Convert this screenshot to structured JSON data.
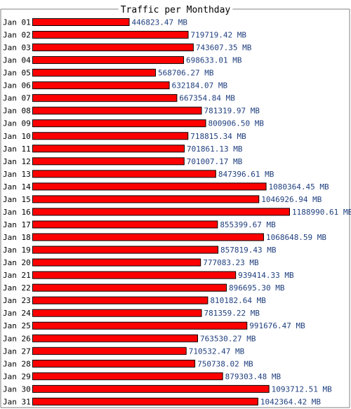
{
  "chart_data": {
    "type": "bar",
    "orientation": "horizontal",
    "title": "Traffic per Monthday",
    "categories": [
      "Jan 01",
      "Jan 02",
      "Jan 03",
      "Jan 04",
      "Jan 05",
      "Jan 06",
      "Jan 07",
      "Jan 08",
      "Jan 09",
      "Jan 10",
      "Jan 11",
      "Jan 12",
      "Jan 13",
      "Jan 14",
      "Jan 15",
      "Jan 16",
      "Jan 17",
      "Jan 18",
      "Jan 19",
      "Jan 20",
      "Jan 21",
      "Jan 22",
      "Jan 23",
      "Jan 24",
      "Jan 25",
      "Jan 26",
      "Jan 27",
      "Jan 28",
      "Jan 29",
      "Jan 30",
      "Jan 31"
    ],
    "values": [
      446823.47,
      719719.42,
      743607.35,
      698633.01,
      568706.27,
      632184.07,
      667354.84,
      781319.97,
      800906.5,
      718815.34,
      701861.13,
      701007.17,
      847396.61,
      1080364.45,
      1046926.94,
      1188990.61,
      855399.67,
      1068648.59,
      857819.43,
      777083.23,
      939414.33,
      896695.3,
      810182.64,
      781359.22,
      991676.47,
      763530.27,
      710532.47,
      750738.02,
      879303.48,
      1093712.51,
      1042364.42
    ],
    "value_labels": [
      "446823.47 MB",
      "719719.42 MB",
      "743607.35 MB",
      "698633.01 MB",
      "568706.27 MB",
      "632184.07 MB",
      "667354.84 MB",
      "781319.97 MB",
      "800906.50 MB",
      "718815.34 MB",
      "701861.13 MB",
      "701007.17 MB",
      "847396.61 MB",
      "1080364.45 MB",
      "1046926.94 MB",
      "1188990.61 MB",
      "855399.67 MB",
      "1068648.59 MB",
      "857819.43 MB",
      "777083.23 MB",
      "939414.33 MB",
      "896695.30 MB",
      "810182.64 MB",
      "781359.22 MB",
      "991676.47 MB",
      "763530.27 MB",
      "710532.47 MB",
      "750738.02 MB",
      "879303.48 MB",
      "1093712.51 MB",
      "1042364.42 MB"
    ],
    "unit": "MB",
    "grid": false,
    "legend": "none",
    "colors": {
      "bar_fill": "#ff0000",
      "bar_stroke": "#000000",
      "value_label": "#1f3f7f",
      "category_label": "#000000",
      "frame": "#808080",
      "title": "#000000"
    }
  }
}
